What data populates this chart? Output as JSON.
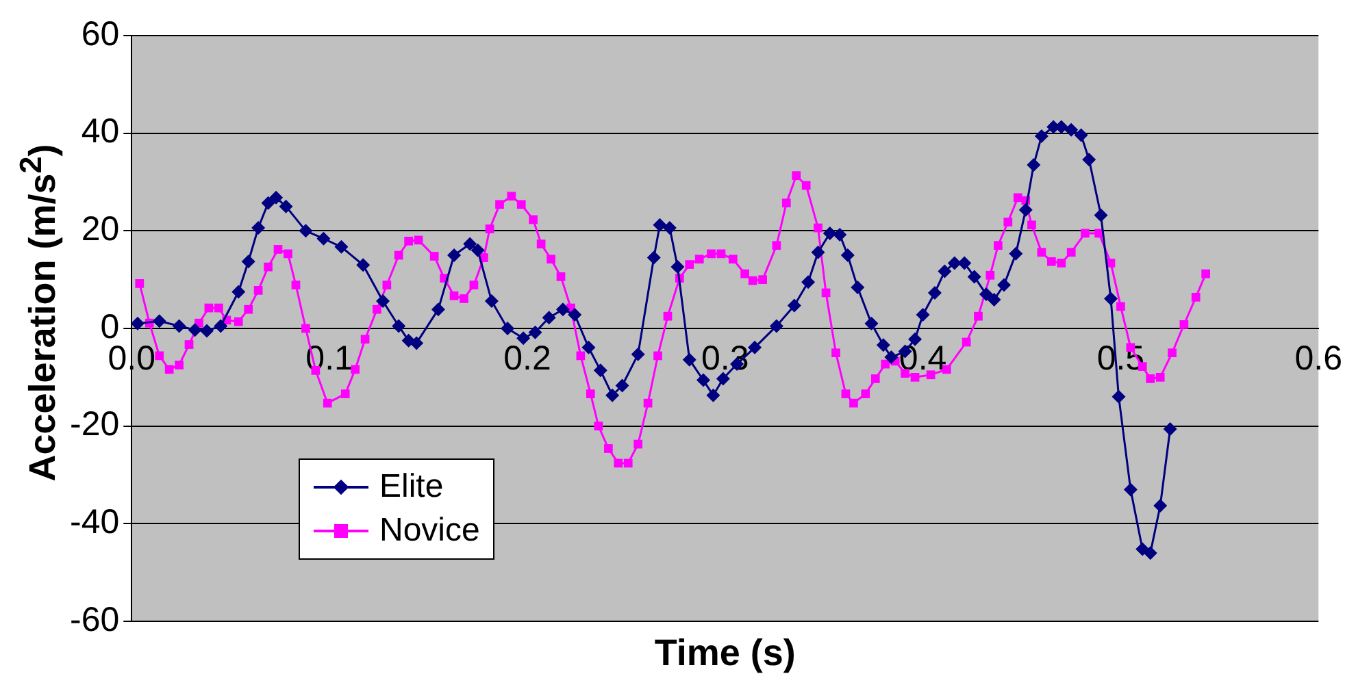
{
  "chart_data": {
    "type": "line",
    "xlabel": "Time (s)",
    "ylabel": "Acceleration (m/s$^{2}$)",
    "xlim": [
      0,
      0.6
    ],
    "xticks": [
      {
        "value": 0,
        "label": "0.0"
      },
      0.1,
      0.2,
      0.3,
      0.4,
      0.5,
      0.6
    ],
    "ylim": [
      -60,
      60
    ],
    "yticks": [
      -60,
      -40,
      -20,
      0,
      20,
      40,
      60
    ],
    "grid": "y",
    "legend": "bottom left",
    "series": [
      {
        "name": "Elite",
        "color": "#000080",
        "marker": "diamond",
        "x": [
          0.003,
          0.014,
          0.024,
          0.032,
          0.038,
          0.045,
          0.054,
          0.059,
          0.064,
          0.069,
          0.073,
          0.078,
          0.088,
          0.097,
          0.106,
          0.117,
          0.127,
          0.135,
          0.14,
          0.144,
          0.155,
          0.163,
          0.171,
          0.175,
          0.182,
          0.19,
          0.198,
          0.204,
          0.211,
          0.218,
          0.224,
          0.231,
          0.237,
          0.243,
          0.248,
          0.256,
          0.264,
          0.267,
          0.272,
          0.276,
          0.282,
          0.289,
          0.294,
          0.299,
          0.306,
          0.315,
          0.326,
          0.335,
          0.342,
          0.347,
          0.353,
          0.358,
          0.362,
          0.367,
          0.374,
          0.38,
          0.384,
          0.391,
          0.396,
          0.4,
          0.406,
          0.411,
          0.416,
          0.421,
          0.426,
          0.432,
          0.436,
          0.441,
          0.447,
          0.452,
          0.456,
          0.46,
          0.466,
          0.47,
          0.475,
          0.48,
          0.484,
          0.49,
          0.495,
          0.499,
          0.505,
          0.511,
          0.515,
          0.52,
          0.525
        ],
        "values": [
          1,
          1.5,
          0.5,
          -0.3,
          -0.5,
          0.5,
          7.5,
          13.7,
          20.6,
          25.7,
          26.8,
          25,
          20,
          18.4,
          16.7,
          13,
          5.6,
          0.5,
          -2.5,
          -3,
          3.9,
          15,
          17.3,
          16,
          5.6,
          0,
          -2,
          -0.8,
          2.2,
          3.9,
          2.8,
          -3.9,
          -8.6,
          -13.7,
          -11.7,
          -5.3,
          14.5,
          21.2,
          20.6,
          12.6,
          -6.4,
          -10.6,
          -13.7,
          -10.3,
          -7.3,
          -3.9,
          0.5,
          4.7,
          9.5,
          15.6,
          19.5,
          19.2,
          15,
          8.4,
          1,
          -3.4,
          -5.9,
          -4.7,
          -2.2,
          2.8,
          7.3,
          11.7,
          13.4,
          13.4,
          10.6,
          7,
          5.9,
          8.9,
          15.3,
          24.3,
          33.5,
          39.4,
          41.3,
          41.3,
          40.7,
          39.6,
          34.6,
          23.2,
          6.1,
          -14,
          -33,
          -45.2,
          -46,
          -36.3,
          -20.6
        ]
      },
      {
        "name": "Novice",
        "color": "#ff00ff",
        "marker": "square",
        "x": [
          0.004,
          0.009,
          0.014,
          0.019,
          0.024,
          0.029,
          0.034,
          0.039,
          0.044,
          0.048,
          0.054,
          0.059,
          0.064,
          0.069,
          0.074,
          0.079,
          0.083,
          0.088,
          0.093,
          0.099,
          0.108,
          0.113,
          0.118,
          0.124,
          0.129,
          0.135,
          0.14,
          0.145,
          0.153,
          0.158,
          0.163,
          0.168,
          0.173,
          0.178,
          0.181,
          0.186,
          0.192,
          0.197,
          0.203,
          0.207,
          0.212,
          0.217,
          0.222,
          0.227,
          0.232,
          0.236,
          0.241,
          0.246,
          0.251,
          0.256,
          0.261,
          0.266,
          0.271,
          0.277,
          0.282,
          0.287,
          0.293,
          0.298,
          0.304,
          0.31,
          0.314,
          0.319,
          0.326,
          0.331,
          0.336,
          0.341,
          0.347,
          0.351,
          0.356,
          0.361,
          0.365,
          0.371,
          0.376,
          0.381,
          0.386,
          0.391,
          0.396,
          0.404,
          0.412,
          0.422,
          0.428,
          0.434,
          0.438,
          0.443,
          0.448,
          0.452,
          0.455,
          0.46,
          0.465,
          0.47,
          0.475,
          0.482,
          0.489,
          0.495,
          0.5,
          0.505,
          0.511,
          0.515,
          0.52,
          0.526,
          0.532,
          0.538,
          0.543
        ],
        "values": [
          9.2,
          1.1,
          -5.6,
          -8.4,
          -7.5,
          -3.3,
          1.1,
          4.2,
          4.2,
          1.7,
          1.4,
          3.9,
          7.8,
          12.6,
          16.2,
          15.3,
          8.9,
          0,
          -8.6,
          -15.3,
          -13.4,
          -8.4,
          -2.2,
          3.9,
          8.9,
          15,
          17.9,
          18.1,
          14.8,
          10.3,
          6.7,
          6.1,
          8.9,
          14.5,
          20.4,
          25.4,
          27.1,
          25.4,
          22.3,
          17.3,
          14.2,
          10.6,
          4.2,
          -5.6,
          -13.4,
          -20,
          -24.6,
          -27.6,
          -27.6,
          -23.7,
          -15.3,
          -5.6,
          2.5,
          10.3,
          13.1,
          14.2,
          15.3,
          15.3,
          14.2,
          11.2,
          9.8,
          10,
          17,
          25.7,
          31.3,
          29.3,
          20.6,
          7.3,
          -5,
          -13.4,
          -15.3,
          -13.4,
          -10.3,
          -7.3,
          -6.7,
          -9.2,
          -10,
          -9.5,
          -8.4,
          -2.8,
          2.5,
          10.9,
          17,
          21.8,
          26.8,
          26.2,
          21.2,
          15.6,
          13.7,
          13.4,
          15.6,
          19.5,
          19.5,
          13.4,
          4.5,
          -3.9,
          -7.8,
          -10.3,
          -10,
          -5,
          0.8,
          6.4,
          11.2
        ]
      }
    ]
  }
}
